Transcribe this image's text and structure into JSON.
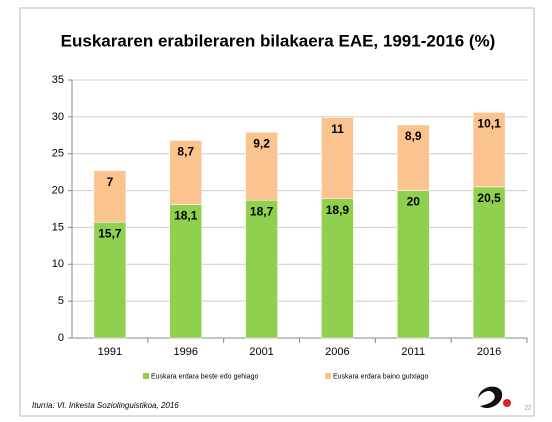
{
  "chart_data": {
    "type": "stacked_bar",
    "title": "Euskararen erabileraren bilakaera EAE, 1991-2016 (%)",
    "categories": [
      "1991",
      "1996",
      "2001",
      "2006",
      "2011",
      "2016"
    ],
    "series": [
      {
        "name": "Euskara erdara beste edo gehiago",
        "color": "#8fd14f",
        "values": [
          15.7,
          18.1,
          18.7,
          18.9,
          20,
          20.5
        ],
        "value_labels": [
          "15,7",
          "18,1",
          "18,7",
          "18,9",
          "20",
          "20,5"
        ]
      },
      {
        "name": "Euskara erdara baino gutxiago",
        "color": "#fac38f",
        "values": [
          7,
          8.7,
          9.2,
          11,
          8.9,
          10.1
        ],
        "value_labels": [
          "7",
          "8,7",
          "9,2",
          "11",
          "8,9",
          "10,1"
        ]
      }
    ],
    "ylim": [
      0,
      35
    ],
    "yticks": [
      0,
      5,
      10,
      15,
      20,
      25,
      30,
      35
    ],
    "grid": true,
    "source": "Iturria: VI. Inkesta Soziolinguistikoa, 2016"
  },
  "page_number": "22"
}
